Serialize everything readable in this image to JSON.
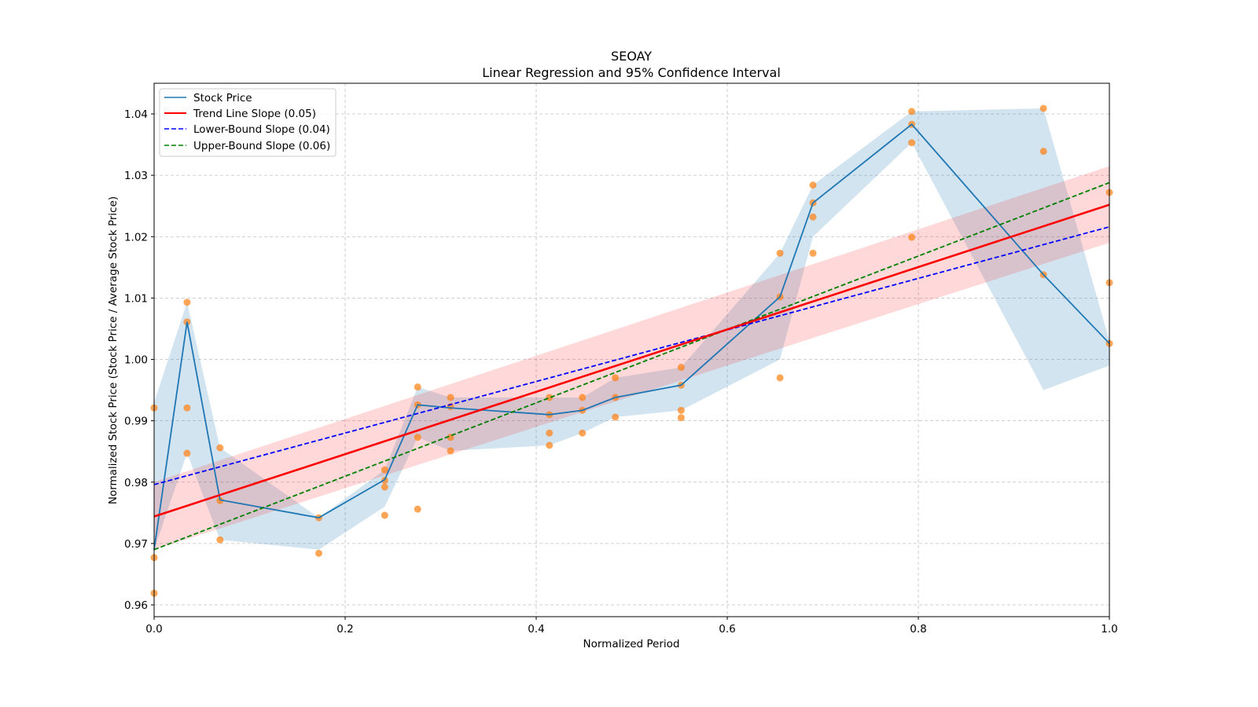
{
  "chart_data": {
    "type": "line",
    "title": "SEOAY",
    "subtitle": "Linear Regression and 95% Confidence Interval",
    "xlabel": "Normalized Period",
    "ylabel": "Normalized Stock Price (Stock Price / Average Stock Price)",
    "xlim": [
      0.0,
      1.0
    ],
    "ylim": [
      0.958,
      1.045
    ],
    "grid": true,
    "legend_position": "top-left",
    "x_ticks": [
      "0.0",
      "0.2",
      "0.4",
      "0.6",
      "0.8",
      "1.0"
    ],
    "x_tick_values": [
      0.0,
      0.2,
      0.4,
      0.6,
      0.8,
      1.0
    ],
    "y_ticks": [
      "0.96",
      "0.97",
      "0.98",
      "0.99",
      "1.00",
      "1.01",
      "1.02",
      "1.03",
      "1.04"
    ],
    "y_tick_values": [
      0.96,
      0.97,
      0.98,
      0.99,
      1.0,
      1.01,
      1.02,
      1.03,
      1.04
    ],
    "legend": [
      {
        "label": "Stock Price",
        "color": "#1f77b4",
        "style": "solid"
      },
      {
        "label": "Trend Line Slope (0.05)",
        "color": "#ff0000",
        "style": "solid"
      },
      {
        "label": "Lower-Bound Slope (0.04)",
        "color": "#0000ff",
        "style": "dashed"
      },
      {
        "label": "Upper-Bound Slope (0.06)",
        "color": "#008000",
        "style": "dashed"
      }
    ],
    "stock_price": {
      "name": "Stock Price",
      "color": "#1f77b4",
      "x": [
        0.0,
        0.0345,
        0.069,
        0.1724,
        0.2414,
        0.2759,
        0.3103,
        0.4138,
        0.4483,
        0.4828,
        0.5517,
        0.6552,
        0.6897,
        0.7931,
        0.931,
        1.0
      ],
      "mean": [
        0.969,
        1.0061,
        0.9771,
        0.9742,
        0.9804,
        0.9926,
        0.9921,
        0.991,
        0.9917,
        0.9938,
        0.9958,
        1.0102,
        1.0255,
        1.0383,
        1.0138,
        1.0026
      ],
      "ci_lower": [
        0.969,
        0.9847,
        0.9706,
        0.969,
        0.976,
        0.9873,
        0.9851,
        0.986,
        0.988,
        0.9906,
        0.9917,
        1.0,
        1.02,
        1.0353,
        0.995,
        0.999
      ],
      "ci_upper": [
        0.993,
        1.0093,
        0.9856,
        0.9742,
        0.982,
        0.9955,
        0.9938,
        0.9938,
        0.9938,
        0.997,
        0.9987,
        1.0173,
        1.0284,
        1.0404,
        1.0409,
        1.003
      ]
    },
    "scatter": {
      "name": "Observations",
      "color": "#ff7f0e",
      "points": [
        [
          0.0,
          0.9921
        ],
        [
          0.0,
          0.9677
        ],
        [
          0.0,
          0.9619
        ],
        [
          0.0345,
          1.0093
        ],
        [
          0.0345,
          1.0061
        ],
        [
          0.0345,
          0.9921
        ],
        [
          0.0345,
          0.9847
        ],
        [
          0.069,
          0.9856
        ],
        [
          0.069,
          0.977
        ],
        [
          0.069,
          0.9706
        ],
        [
          0.1724,
          0.9742
        ],
        [
          0.1724,
          0.9684
        ],
        [
          0.2414,
          0.982
        ],
        [
          0.2414,
          0.9803
        ],
        [
          0.2414,
          0.9792
        ],
        [
          0.2414,
          0.9746
        ],
        [
          0.2759,
          0.9955
        ],
        [
          0.2759,
          0.9926
        ],
        [
          0.2759,
          0.9873
        ],
        [
          0.2759,
          0.9756
        ],
        [
          0.3103,
          0.9938
        ],
        [
          0.3103,
          0.9923
        ],
        [
          0.3103,
          0.9873
        ],
        [
          0.3103,
          0.9851
        ],
        [
          0.4138,
          0.9938
        ],
        [
          0.4138,
          0.991
        ],
        [
          0.4138,
          0.988
        ],
        [
          0.4138,
          0.986
        ],
        [
          0.4483,
          0.9938
        ],
        [
          0.4483,
          0.9917
        ],
        [
          0.4483,
          0.988
        ],
        [
          0.4828,
          0.997
        ],
        [
          0.4828,
          0.9938
        ],
        [
          0.4828,
          0.9906
        ],
        [
          0.5517,
          0.9987
        ],
        [
          0.5517,
          0.9958
        ],
        [
          0.5517,
          0.9917
        ],
        [
          0.5517,
          0.9905
        ],
        [
          0.6552,
          1.0173
        ],
        [
          0.6552,
          1.0102
        ],
        [
          0.6552,
          0.997
        ],
        [
          0.6897,
          1.0284
        ],
        [
          0.6897,
          1.0255
        ],
        [
          0.6897,
          1.0232
        ],
        [
          0.6897,
          1.0173
        ],
        [
          0.7931,
          1.0404
        ],
        [
          0.7931,
          1.0383
        ],
        [
          0.7931,
          1.0353
        ],
        [
          0.7931,
          1.0199
        ],
        [
          0.931,
          1.0409
        ],
        [
          0.931,
          1.0339
        ],
        [
          0.931,
          1.0138
        ],
        [
          1.0,
          1.0272
        ],
        [
          1.0,
          1.0125
        ],
        [
          1.0,
          1.0026
        ]
      ]
    },
    "trend_line": {
      "name": "Trend Line Slope (0.05)",
      "color": "#ff0000",
      "x": [
        0.0,
        1.0
      ],
      "y": [
        0.9744,
        1.0252
      ]
    },
    "trend_band": {
      "color": "#ffb6c1",
      "x": [
        0.0,
        1.0
      ],
      "lower": [
        0.969,
        1.019
      ],
      "upper": [
        0.98,
        1.0315
      ]
    },
    "lower_bound_line": {
      "name": "Lower-Bound Slope (0.04)",
      "color": "#0000ff",
      "x": [
        0.0,
        1.0
      ],
      "y": [
        0.9796,
        1.0216
      ]
    },
    "upper_bound_line": {
      "name": "Upper-Bound Slope (0.06)",
      "color": "#008000",
      "x": [
        0.0,
        1.0
      ],
      "y": [
        0.969,
        1.0288
      ]
    }
  }
}
